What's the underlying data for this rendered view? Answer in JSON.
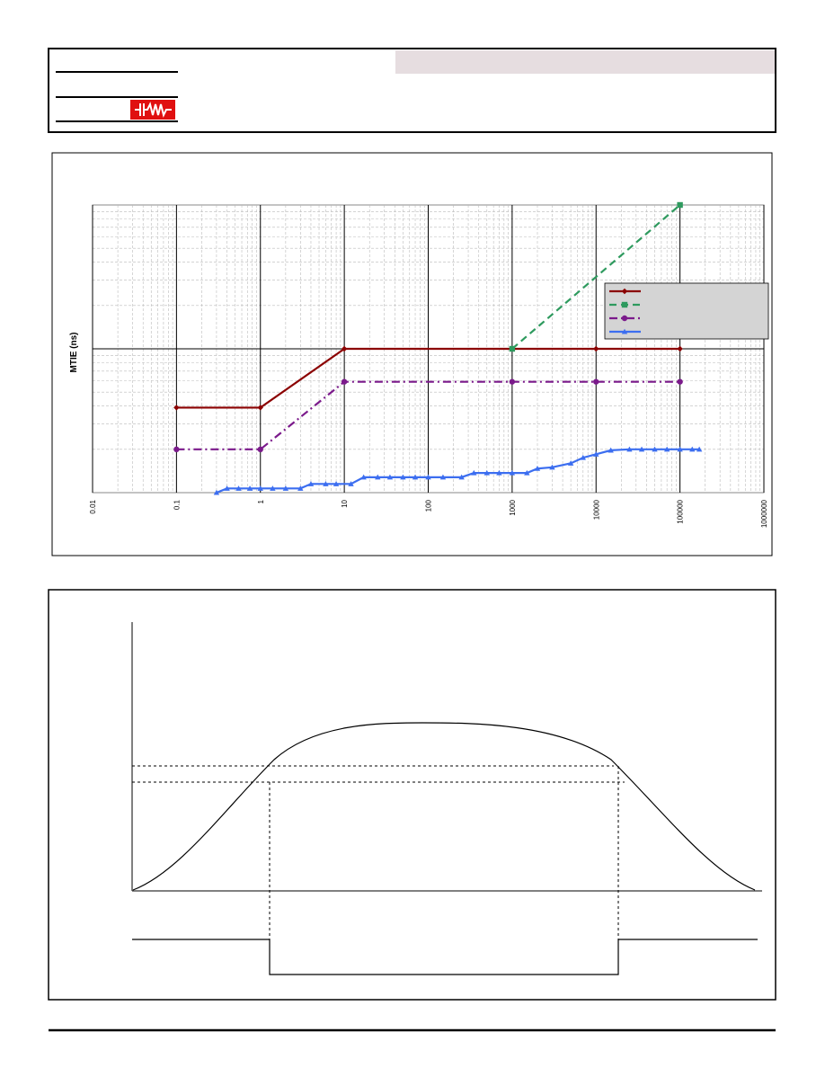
{
  "chart_data": {
    "type": "line",
    "y_label": "MTIE (ns)",
    "xlim": [
      0.01,
      1000000
    ],
    "xticks": [
      0.01,
      0.1,
      1,
      10,
      100,
      1000,
      10000,
      100000,
      1000000
    ],
    "log_x": true,
    "ylim": [
      1,
      100
    ],
    "log_y": true,
    "grid": true,
    "legend": "upper right",
    "series": [
      {
        "color": "#8b0000",
        "dash": "solid",
        "marker": "diamond",
        "x": [
          0.1,
          1,
          10,
          1000,
          10000,
          100000
        ],
        "values": [
          3.9,
          3.9,
          10,
          10,
          10,
          10
        ]
      },
      {
        "color": "#2e9a5e",
        "dash": "dashed",
        "marker": "square",
        "x": [
          1000,
          100000
        ],
        "values": [
          10,
          100
        ]
      },
      {
        "color": "#7b1a8b",
        "dash": "dashdot",
        "marker": "circle",
        "x": [
          0.1,
          1,
          10,
          1000,
          10000,
          100000
        ],
        "values": [
          2,
          2,
          5.9,
          5.9,
          5.9,
          5.9
        ]
      },
      {
        "color": "#3c6ef0",
        "dash": "solid",
        "marker": "triangle",
        "x": [
          0.3,
          0.4,
          0.55,
          0.75,
          1,
          1.4,
          2,
          3,
          4,
          6,
          8,
          12,
          17,
          25,
          35,
          50,
          70,
          100,
          150,
          250,
          350,
          500,
          700,
          1000,
          1500,
          2000,
          3000,
          5000,
          7000,
          10000,
          15000,
          25000,
          35000,
          50000,
          70000,
          100000,
          140000,
          170000
        ],
        "values": [
          1,
          1.07,
          1.07,
          1.07,
          1.07,
          1.07,
          1.07,
          1.07,
          1.15,
          1.15,
          1.15,
          1.15,
          1.28,
          1.28,
          1.28,
          1.28,
          1.28,
          1.28,
          1.28,
          1.28,
          1.37,
          1.37,
          1.37,
          1.37,
          1.37,
          1.47,
          1.5,
          1.6,
          1.75,
          1.85,
          1.97,
          2,
          2,
          2,
          2,
          2,
          2,
          2
        ]
      }
    ]
  }
}
